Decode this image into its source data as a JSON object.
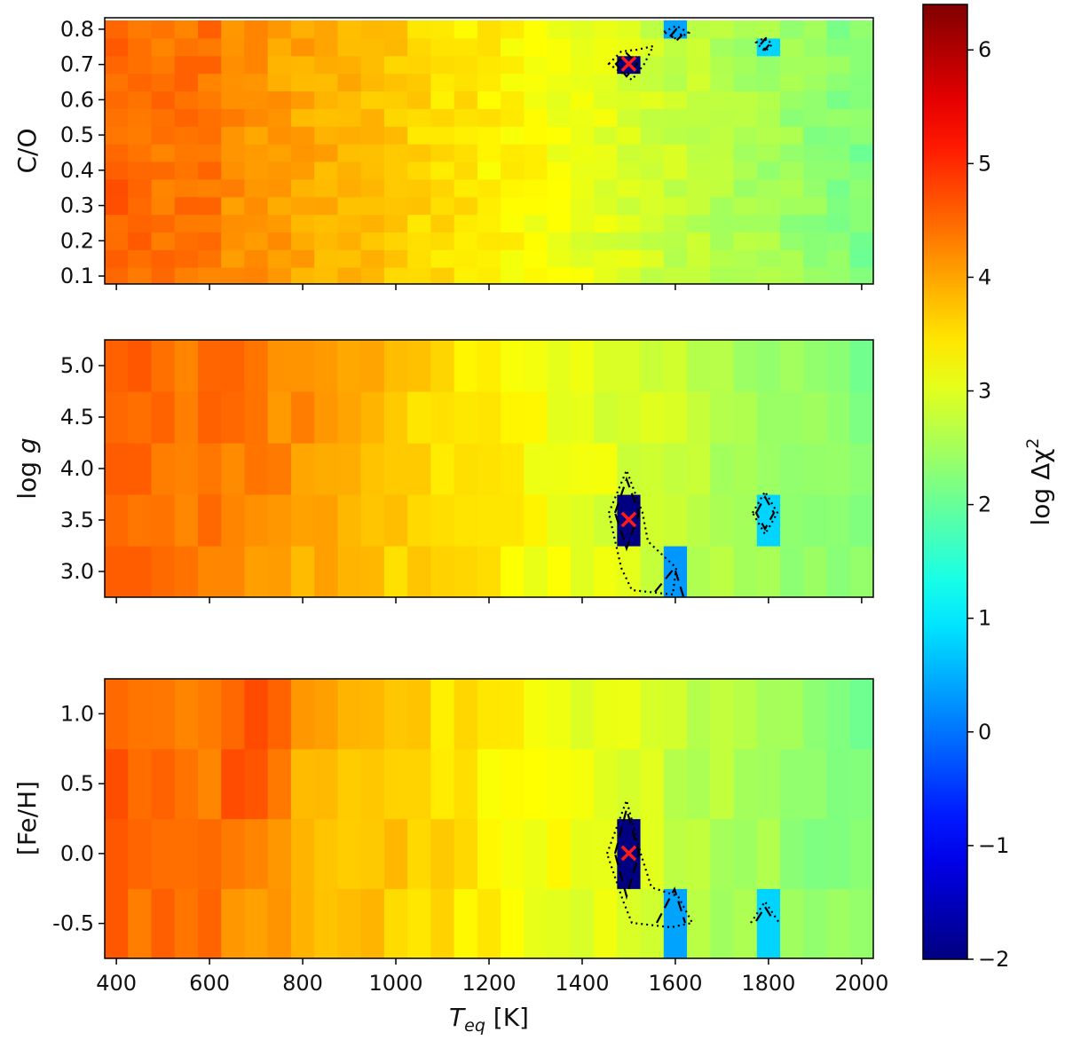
{
  "chart_data": {
    "type": "heatmap",
    "x": {
      "label_main": "T",
      "label_sub": "eq",
      "label_unit": " [K]",
      "range": [
        375,
        2025
      ],
      "cell_width": 50,
      "ticks": [
        400,
        600,
        800,
        1000,
        1200,
        1400,
        1600,
        1800,
        2000
      ],
      "tick_labels": [
        "400",
        "600",
        "800",
        "1000",
        "1200",
        "1400",
        "1600",
        "1800",
        "2000"
      ]
    },
    "colorbar": {
      "label_main": "log Δχ",
      "label_sup": "2",
      "range": [
        -2,
        6.4
      ],
      "ticks": [
        -2,
        -1,
        0,
        1,
        2,
        3,
        4,
        5,
        6
      ],
      "tick_labels": [
        "−2",
        "−1",
        "0",
        "1",
        "2",
        "3",
        "4",
        "5",
        "6"
      ],
      "colormap": "jet"
    },
    "panels": [
      {
        "id": "co",
        "ylabel": "C/O",
        "ylabel_italic": false,
        "yrange": [
          0.0775,
          0.8325
        ],
        "cell_height": 0.05,
        "data_top": 0.825,
        "y_values": [
          0.1,
          0.15,
          0.2,
          0.25,
          0.3,
          0.35,
          0.4,
          0.45,
          0.5,
          0.55,
          0.6,
          0.65,
          0.7,
          0.75,
          0.8
        ],
        "yticks": [
          0.1,
          0.2,
          0.3,
          0.4,
          0.5,
          0.6,
          0.7,
          0.8
        ],
        "ytick_labels": [
          "0.1",
          "0.2",
          "0.3",
          "0.4",
          "0.5",
          "0.6",
          "0.7",
          "0.8"
        ],
        "best_fit": {
          "x": 1500,
          "y": 0.7,
          "marker": "×"
        },
        "special_cells": [
          {
            "x": 1500,
            "y": 0.7,
            "value": -2
          },
          {
            "x": 1600,
            "y": 0.8,
            "value": 0.4
          },
          {
            "x": 1800,
            "y": 0.75,
            "value": 0.8
          }
        ]
      },
      {
        "id": "logg",
        "ylabel_prefix": "log ",
        "ylabel_var": "g",
        "yrange": [
          2.75,
          5.25
        ],
        "cell_height": 0.5,
        "y_values": [
          3.0,
          3.5,
          4.0,
          4.5,
          5.0
        ],
        "yticks": [
          3.0,
          3.5,
          4.0,
          4.5,
          5.0
        ],
        "ytick_labels": [
          "3.0",
          "3.5",
          "4.0",
          "4.5",
          "5.0"
        ],
        "best_fit": {
          "x": 1500,
          "y": 3.5,
          "marker": "×"
        },
        "special_cells": [
          {
            "x": 1500,
            "y": 3.5,
            "value": -2
          },
          {
            "x": 1600,
            "y": 3.0,
            "value": 0.3
          },
          {
            "x": 1800,
            "y": 3.5,
            "value": 0.8
          }
        ]
      },
      {
        "id": "feh",
        "ylabel": "[Fe/H]",
        "ylabel_italic": false,
        "yrange": [
          -0.75,
          1.25
        ],
        "cell_height": 0.5,
        "y_values": [
          -0.5,
          0.0,
          0.5,
          1.0
        ],
        "yticks": [
          -0.5,
          0.0,
          0.5,
          1.0
        ],
        "ytick_labels": [
          "-0.5",
          "0.0",
          "0.5",
          "1.0"
        ],
        "best_fit": {
          "x": 1500,
          "y": 0.0,
          "marker": "×"
        },
        "special_cells": [
          {
            "x": 1500,
            "y": 0.0,
            "value": -2
          },
          {
            "x": 1600,
            "y": -0.5,
            "value": 0.4
          },
          {
            "x": 1800,
            "y": -0.5,
            "value": 0.8
          }
        ]
      }
    ]
  }
}
